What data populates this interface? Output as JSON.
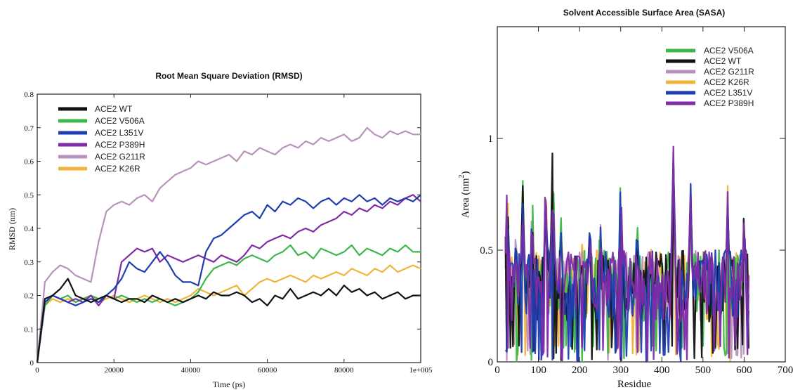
{
  "chart_data": [
    {
      "type": "line",
      "title": "Root Mean Square Deviation (RMSD)",
      "xlabel": "Time (ps)",
      "ylabel": "RMSD (nm)",
      "xlim": [
        0,
        100000
      ],
      "ylim": [
        0,
        0.8
      ],
      "x_ticks": [
        "0",
        "20000",
        "40000",
        "60000",
        "80000",
        "1e+005"
      ],
      "y_ticks": [
        "0",
        "0.1",
        "0.2",
        "0.3",
        "0.4",
        "0.5",
        "0.6",
        "0.7",
        "0.8"
      ],
      "legend": "top-left",
      "x": [
        0,
        2000,
        4000,
        6000,
        8000,
        10000,
        12000,
        14000,
        16000,
        18000,
        20000,
        22000,
        24000,
        26000,
        28000,
        30000,
        32000,
        34000,
        36000,
        38000,
        40000,
        42000,
        44000,
        46000,
        48000,
        50000,
        52000,
        54000,
        56000,
        58000,
        60000,
        62000,
        64000,
        66000,
        68000,
        70000,
        72000,
        74000,
        76000,
        78000,
        80000,
        82000,
        84000,
        86000,
        88000,
        90000,
        92000,
        94000,
        96000,
        98000,
        100000
      ],
      "series": [
        {
          "name": "ACE2 WT",
          "color": "#111111",
          "values": [
            0,
            0.19,
            0.2,
            0.22,
            0.25,
            0.2,
            0.19,
            0.18,
            0.19,
            0.2,
            0.19,
            0.18,
            0.19,
            0.19,
            0.18,
            0.2,
            0.19,
            0.18,
            0.19,
            0.18,
            0.19,
            0.2,
            0.19,
            0.21,
            0.2,
            0.2,
            0.21,
            0.2,
            0.18,
            0.19,
            0.17,
            0.2,
            0.19,
            0.22,
            0.19,
            0.2,
            0.21,
            0.2,
            0.22,
            0.2,
            0.23,
            0.21,
            0.22,
            0.2,
            0.21,
            0.19,
            0.2,
            0.21,
            0.19,
            0.2,
            0.2
          ]
        },
        {
          "name": "ACE2 V506A",
          "color": "#3cb84a",
          "values": [
            0,
            0.17,
            0.2,
            0.19,
            0.2,
            0.18,
            0.19,
            0.2,
            0.19,
            0.2,
            0.19,
            0.2,
            0.19,
            0.18,
            0.19,
            0.18,
            0.19,
            0.18,
            0.17,
            0.18,
            0.19,
            0.21,
            0.25,
            0.28,
            0.29,
            0.3,
            0.29,
            0.31,
            0.32,
            0.31,
            0.3,
            0.32,
            0.33,
            0.35,
            0.32,
            0.33,
            0.31,
            0.34,
            0.33,
            0.32,
            0.33,
            0.35,
            0.32,
            0.34,
            0.33,
            0.32,
            0.34,
            0.33,
            0.35,
            0.33,
            0.33
          ]
        },
        {
          "name": "ACE2 L351V",
          "color": "#1f3db0",
          "values": [
            0,
            0.18,
            0.2,
            0.19,
            0.18,
            0.17,
            0.18,
            0.19,
            0.18,
            0.2,
            0.22,
            0.25,
            0.3,
            0.28,
            0.27,
            0.3,
            0.33,
            0.3,
            0.26,
            0.24,
            0.24,
            0.23,
            0.33,
            0.37,
            0.38,
            0.4,
            0.42,
            0.44,
            0.45,
            0.43,
            0.47,
            0.45,
            0.48,
            0.47,
            0.49,
            0.48,
            0.46,
            0.48,
            0.49,
            0.47,
            0.49,
            0.48,
            0.5,
            0.48,
            0.49,
            0.47,
            0.49,
            0.48,
            0.49,
            0.48,
            0.5
          ]
        },
        {
          "name": "ACE2 P389H",
          "color": "#7f2aa8",
          "values": [
            0,
            0.18,
            0.2,
            0.19,
            0.18,
            0.19,
            0.18,
            0.2,
            0.17,
            0.2,
            0.19,
            0.3,
            0.32,
            0.34,
            0.33,
            0.34,
            0.3,
            0.32,
            0.31,
            0.3,
            0.31,
            0.32,
            0.31,
            0.3,
            0.32,
            0.31,
            0.3,
            0.32,
            0.35,
            0.34,
            0.36,
            0.37,
            0.38,
            0.37,
            0.39,
            0.4,
            0.39,
            0.41,
            0.42,
            0.43,
            0.45,
            0.44,
            0.46,
            0.45,
            0.47,
            0.46,
            0.48,
            0.47,
            0.49,
            0.5,
            0.48
          ]
        },
        {
          "name": "ACE2 G211R",
          "color": "#b891bc",
          "values": [
            0,
            0.24,
            0.27,
            0.29,
            0.28,
            0.26,
            0.25,
            0.24,
            0.36,
            0.45,
            0.47,
            0.48,
            0.47,
            0.49,
            0.5,
            0.48,
            0.52,
            0.54,
            0.56,
            0.57,
            0.58,
            0.6,
            0.59,
            0.6,
            0.61,
            0.62,
            0.6,
            0.63,
            0.62,
            0.64,
            0.63,
            0.62,
            0.64,
            0.65,
            0.64,
            0.66,
            0.65,
            0.67,
            0.66,
            0.67,
            0.68,
            0.66,
            0.67,
            0.7,
            0.68,
            0.67,
            0.69,
            0.68,
            0.69,
            0.68,
            0.68
          ]
        },
        {
          "name": "ACE2 K26R",
          "color": "#f0b43a",
          "values": [
            0,
            0.17,
            0.19,
            0.18,
            0.19,
            0.18,
            0.19,
            0.2,
            0.18,
            0.19,
            0.2,
            0.19,
            0.18,
            0.19,
            0.2,
            0.19,
            0.18,
            0.19,
            0.18,
            0.19,
            0.2,
            0.22,
            0.21,
            0.2,
            0.21,
            0.22,
            0.23,
            0.2,
            0.22,
            0.24,
            0.25,
            0.24,
            0.25,
            0.26,
            0.25,
            0.24,
            0.26,
            0.25,
            0.26,
            0.27,
            0.26,
            0.28,
            0.27,
            0.26,
            0.28,
            0.27,
            0.29,
            0.27,
            0.28,
            0.29,
            0.28
          ]
        }
      ]
    },
    {
      "type": "line",
      "title": "Solvent Accessible Surface Area (SASA)",
      "xlabel": "Residue",
      "ylabel": "Area (nm²)",
      "ylabel_main": "Area (nm",
      "ylabel_exp": "2",
      "ylabel_tail": ")",
      "xlim": [
        0,
        700
      ],
      "ylim": [
        0,
        1.5
      ],
      "x_ticks": [
        "0",
        "100",
        "200",
        "300",
        "400",
        "500",
        "600",
        "700"
      ],
      "y_ticks": [
        "0",
        "0.5",
        "1"
      ],
      "legend": "top-right",
      "series": [
        {
          "name": "ACE2 V506A",
          "color": "#3cb84a"
        },
        {
          "name": "ACE2 WT",
          "color": "#111111"
        },
        {
          "name": "ACE2 G211R",
          "color": "#b891bc"
        },
        {
          "name": "ACE2 K26R",
          "color": "#f0b43a"
        },
        {
          "name": "ACE2 L351V",
          "color": "#1f3db0"
        },
        {
          "name": "ACE2 P389H",
          "color": "#7f2aa8"
        }
      ]
    }
  ]
}
